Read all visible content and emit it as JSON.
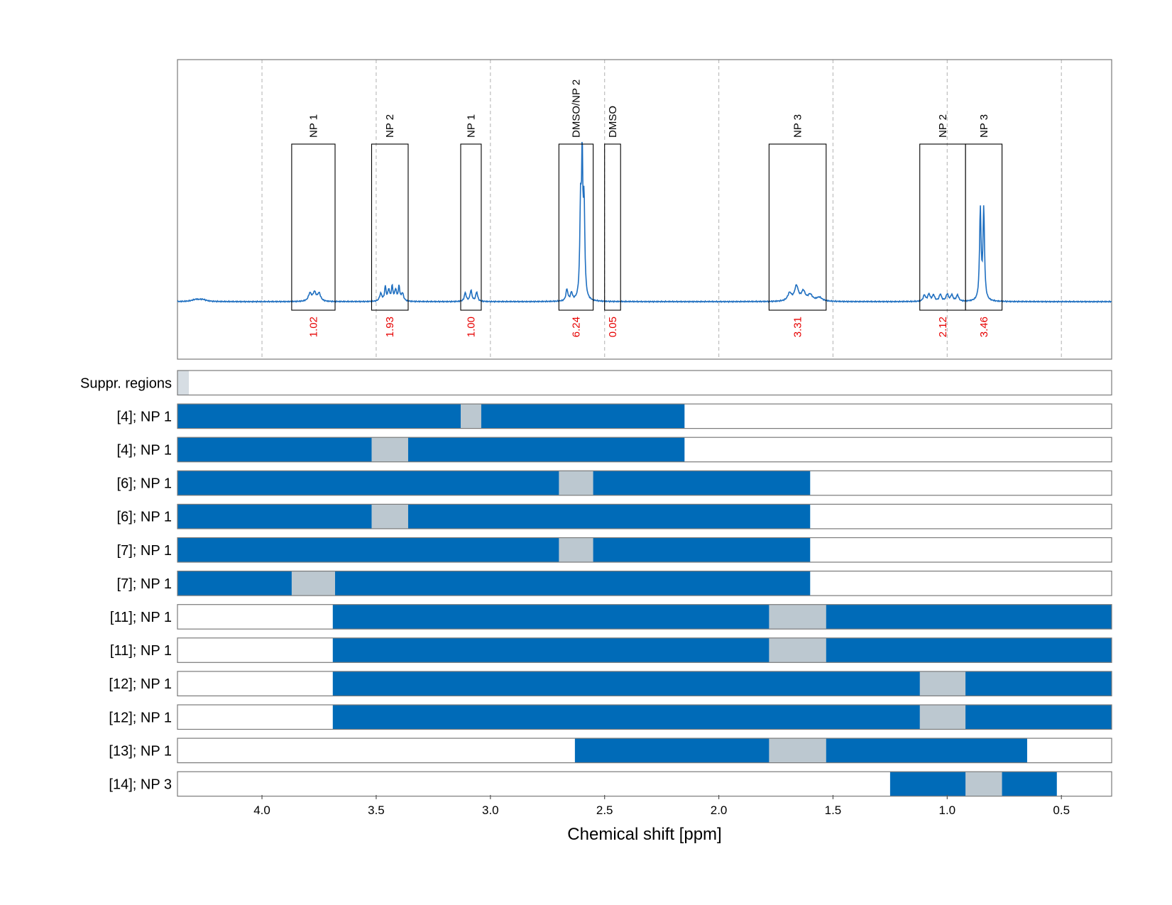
{
  "chart_data": {
    "type": "spectrum",
    "title": "",
    "xlabel": "Chemical shift [ppm]",
    "xlim": [
      4.37,
      0.28
    ],
    "x_ticks": [
      4.0,
      3.5,
      3.0,
      2.5,
      2.0,
      1.5,
      1.0,
      0.5
    ],
    "x_tick_labels": [
      "4.0",
      "3.5",
      "3.0",
      "2.5",
      "2.0",
      "1.5",
      "1.0",
      "0.5"
    ],
    "grid": true,
    "colors": {
      "spectrum": "#1f6fc0",
      "range": "#006bb8",
      "excluded": "#bcc8d0",
      "suppressed": "#d6dde3",
      "integral": "#e60000"
    },
    "integration_regions": [
      {
        "label": "NP 1",
        "from": 3.87,
        "to": 3.68,
        "integral": "1.02"
      },
      {
        "label": "NP 2",
        "from": 3.52,
        "to": 3.36,
        "integral": "1.93"
      },
      {
        "label": "NP 1",
        "from": 3.13,
        "to": 3.04,
        "integral": "1.00"
      },
      {
        "label": "DMSO/NP 2",
        "from": 2.7,
        "to": 2.55,
        "integral": "6.24"
      },
      {
        "label": "DMSO",
        "from": 2.5,
        "to": 2.43,
        "integral": "0.05"
      },
      {
        "label": "NP 3",
        "from": 1.78,
        "to": 1.53,
        "integral": "3.31"
      },
      {
        "label": "NP 2",
        "from": 1.12,
        "to": 0.92,
        "integral": "2.12"
      },
      {
        "label": "NP 3",
        "from": 0.92,
        "to": 0.76,
        "integral": "3.46"
      }
    ],
    "spectrum_peaks": [
      {
        "ppm": 4.29,
        "height": 0.012,
        "width": 0.02
      },
      {
        "ppm": 4.26,
        "height": 0.012,
        "width": 0.02
      },
      {
        "ppm": 3.79,
        "height": 0.05,
        "width": 0.008
      },
      {
        "ppm": 3.77,
        "height": 0.055,
        "width": 0.008
      },
      {
        "ppm": 3.75,
        "height": 0.05,
        "width": 0.008
      },
      {
        "ppm": 3.48,
        "height": 0.05,
        "width": 0.006
      },
      {
        "ppm": 3.46,
        "height": 0.09,
        "width": 0.004
      },
      {
        "ppm": 3.445,
        "height": 0.07,
        "width": 0.005
      },
      {
        "ppm": 3.43,
        "height": 0.09,
        "width": 0.004
      },
      {
        "ppm": 3.415,
        "height": 0.07,
        "width": 0.005
      },
      {
        "ppm": 3.4,
        "height": 0.09,
        "width": 0.004
      },
      {
        "ppm": 3.385,
        "height": 0.05,
        "width": 0.006
      },
      {
        "ppm": 3.11,
        "height": 0.055,
        "width": 0.005
      },
      {
        "ppm": 3.085,
        "height": 0.07,
        "width": 0.005
      },
      {
        "ppm": 3.06,
        "height": 0.06,
        "width": 0.005
      },
      {
        "ppm": 2.665,
        "height": 0.075,
        "width": 0.005
      },
      {
        "ppm": 2.645,
        "height": 0.05,
        "width": 0.005
      },
      {
        "ppm": 2.605,
        "height": 0.6,
        "width": 0.004
      },
      {
        "ppm": 2.598,
        "height": 0.82,
        "width": 0.003
      },
      {
        "ppm": 2.59,
        "height": 0.6,
        "width": 0.004
      },
      {
        "ppm": 1.69,
        "height": 0.05,
        "width": 0.01
      },
      {
        "ppm": 1.66,
        "height": 0.095,
        "width": 0.01
      },
      {
        "ppm": 1.63,
        "height": 0.06,
        "width": 0.01
      },
      {
        "ppm": 1.6,
        "height": 0.04,
        "width": 0.012
      },
      {
        "ppm": 1.56,
        "height": 0.025,
        "width": 0.015
      },
      {
        "ppm": 1.1,
        "height": 0.04,
        "width": 0.006
      },
      {
        "ppm": 1.08,
        "height": 0.045,
        "width": 0.006
      },
      {
        "ppm": 1.06,
        "height": 0.04,
        "width": 0.006
      },
      {
        "ppm": 1.03,
        "height": 0.045,
        "width": 0.006
      },
      {
        "ppm": 1.0,
        "height": 0.045,
        "width": 0.006
      },
      {
        "ppm": 0.98,
        "height": 0.04,
        "width": 0.006
      },
      {
        "ppm": 0.955,
        "height": 0.04,
        "width": 0.006
      },
      {
        "ppm": 0.855,
        "height": 0.58,
        "width": 0.004
      },
      {
        "ppm": 0.84,
        "height": 0.58,
        "width": 0.004
      }
    ],
    "rows": [
      {
        "label": "Suppr. regions",
        "ranges": [],
        "excluded": [],
        "suppressed": [
          [
            4.37,
            4.32
          ]
        ]
      },
      {
        "label": "[4]; NP 1",
        "ranges": [
          [
            4.37,
            2.15
          ]
        ],
        "excluded": [
          [
            3.13,
            3.04
          ]
        ]
      },
      {
        "label": "[4]; NP 1",
        "ranges": [
          [
            4.37,
            2.15
          ]
        ],
        "excluded": [
          [
            3.52,
            3.36
          ]
        ]
      },
      {
        "label": "[6]; NP 1",
        "ranges": [
          [
            4.37,
            1.6
          ]
        ],
        "excluded": [
          [
            2.7,
            2.55
          ]
        ]
      },
      {
        "label": "[6]; NP 1",
        "ranges": [
          [
            4.37,
            1.6
          ]
        ],
        "excluded": [
          [
            3.52,
            3.36
          ]
        ]
      },
      {
        "label": "[7]; NP 1",
        "ranges": [
          [
            4.37,
            1.6
          ]
        ],
        "excluded": [
          [
            2.7,
            2.55
          ]
        ]
      },
      {
        "label": "[7]; NP 1",
        "ranges": [
          [
            4.37,
            1.6
          ]
        ],
        "excluded": [
          [
            3.87,
            3.68
          ]
        ]
      },
      {
        "label": "[11]; NP 1",
        "ranges": [
          [
            3.69,
            0.28
          ]
        ],
        "excluded": [
          [
            1.78,
            1.53
          ]
        ]
      },
      {
        "label": "[11]; NP 1",
        "ranges": [
          [
            3.69,
            0.28
          ]
        ],
        "excluded": [
          [
            1.78,
            1.53
          ]
        ]
      },
      {
        "label": "[12]; NP 1",
        "ranges": [
          [
            3.69,
            0.28
          ]
        ],
        "excluded": [
          [
            1.12,
            0.92
          ]
        ]
      },
      {
        "label": "[12]; NP 1",
        "ranges": [
          [
            3.69,
            0.28
          ]
        ],
        "excluded": [
          [
            1.12,
            0.92
          ]
        ]
      },
      {
        "label": "[13]; NP 1",
        "ranges": [
          [
            2.63,
            0.65
          ]
        ],
        "excluded": [
          [
            1.78,
            1.53
          ]
        ]
      },
      {
        "label": "[14]; NP 3",
        "ranges": [
          [
            1.25,
            0.52
          ]
        ],
        "excluded": [
          [
            0.92,
            0.76
          ]
        ]
      }
    ]
  }
}
